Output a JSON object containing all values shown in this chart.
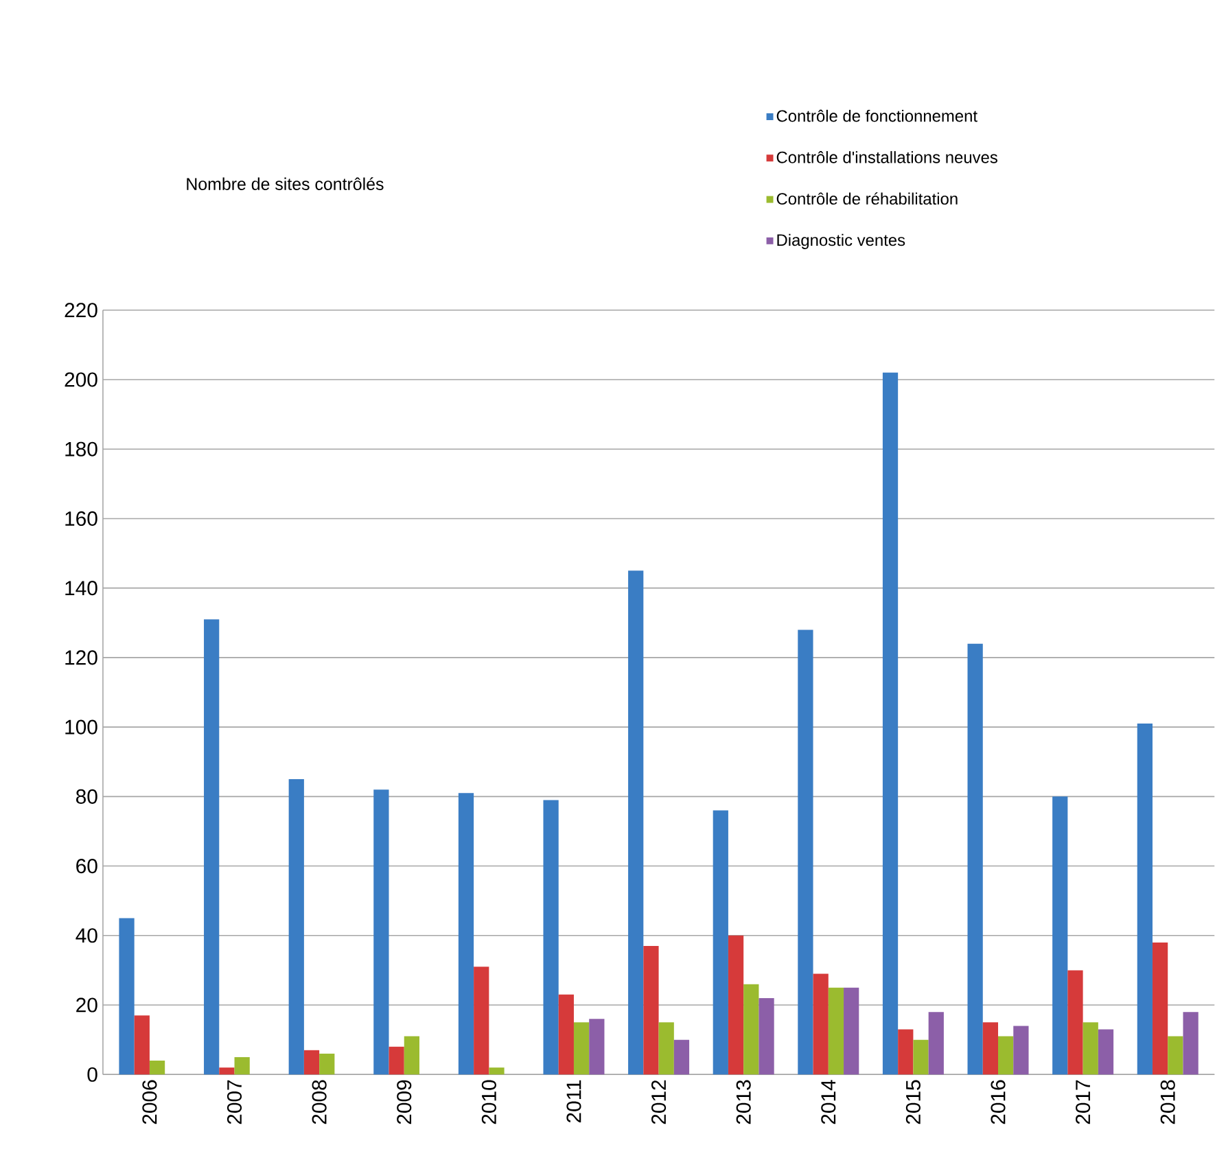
{
  "chart_data": {
    "type": "bar",
    "title": "Nombre de sites contrôlés",
    "categories": [
      "2006",
      "2007",
      "2008",
      "2009",
      "2010",
      "2011",
      "2012",
      "2013",
      "2014",
      "2015",
      "2016",
      "2017",
      "2018"
    ],
    "series": [
      {
        "name": "Contrôle de fonctionnement",
        "color": "#3a7dc4",
        "values": [
          45,
          131,
          85,
          82,
          81,
          79,
          145,
          76,
          128,
          202,
          124,
          80,
          101
        ]
      },
      {
        "name": "Contrôle d'installations neuves",
        "color": "#d63a3a",
        "values": [
          17,
          2,
          7,
          8,
          31,
          23,
          37,
          40,
          29,
          13,
          15,
          30,
          38
        ]
      },
      {
        "name": "Contrôle de réhabilitation",
        "color": "#9bbb2f",
        "values": [
          4,
          5,
          6,
          11,
          2,
          15,
          15,
          26,
          25,
          10,
          11,
          15,
          11
        ]
      },
      {
        "name": "Diagnostic ventes",
        "color": "#8c5fa8",
        "values": [
          null,
          null,
          null,
          null,
          null,
          16,
          10,
          22,
          25,
          18,
          14,
          13,
          18
        ]
      }
    ],
    "ylim": [
      0,
      220
    ],
    "yticks": [
      0,
      20,
      40,
      60,
      80,
      100,
      120,
      140,
      160,
      180,
      200,
      220
    ],
    "grid": "y",
    "legend": "top right"
  }
}
